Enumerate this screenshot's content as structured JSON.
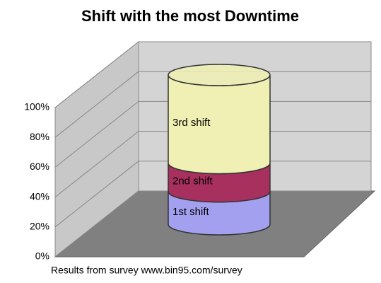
{
  "chart_data": {
    "type": "stacked-cylinder",
    "title": "Shift with the most Downtime",
    "footnote": "Results from survey www.bin95.com/survey",
    "categories": [
      null
    ],
    "series": [
      {
        "name": "1st shift",
        "color": "#a4a0f0",
        "values": [
          22
        ]
      },
      {
        "name": "2nd shift",
        "color": "#a8305e",
        "values": [
          19
        ]
      },
      {
        "name": "3rd shift",
        "color": "#f0f0b4",
        "values": [
          59
        ]
      }
    ],
    "ylim": [
      0,
      100
    ],
    "yticks": [
      {
        "value": 0,
        "label": "0%"
      },
      {
        "value": 20,
        "label": "20%"
      },
      {
        "value": 40,
        "label": "40%"
      },
      {
        "value": 60,
        "label": "60%"
      },
      {
        "value": 80,
        "label": "80%"
      },
      {
        "value": 100,
        "label": "100%"
      }
    ],
    "grid": true
  }
}
